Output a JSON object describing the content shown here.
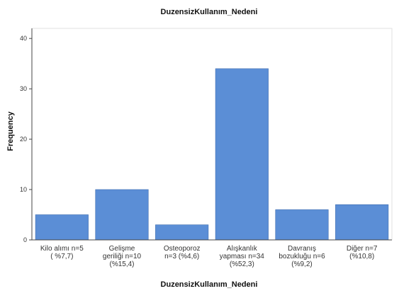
{
  "chart_data": {
    "type": "bar",
    "title": "DuzensizKullanım_Nedeni",
    "xlabel": "DuzensizKullanım_Nedeni",
    "ylabel": "Frequency",
    "ylim": [
      0,
      42
    ],
    "yticks": [
      0,
      10,
      20,
      30,
      40
    ],
    "grid": false,
    "legend": "none",
    "bar_color": "#5B8ED6",
    "bar_stroke": "#3E6DB0",
    "categories": [
      [
        "Kilo alımı n=5",
        "( %7,7)"
      ],
      [
        "Gelişme",
        "geriliği n=10",
        "(%15,4)"
      ],
      [
        "Osteoporoz",
        "n=3 (%4,6)"
      ],
      [
        "Alışkanlık",
        "yapması n=34",
        "(%52,3)"
      ],
      [
        "Davranış",
        "bozukluğu n=6",
        "(%9,2)"
      ],
      [
        "Diğer n=7",
        "(%10,8)"
      ]
    ],
    "values": [
      5,
      10,
      3,
      34,
      6,
      7
    ]
  }
}
